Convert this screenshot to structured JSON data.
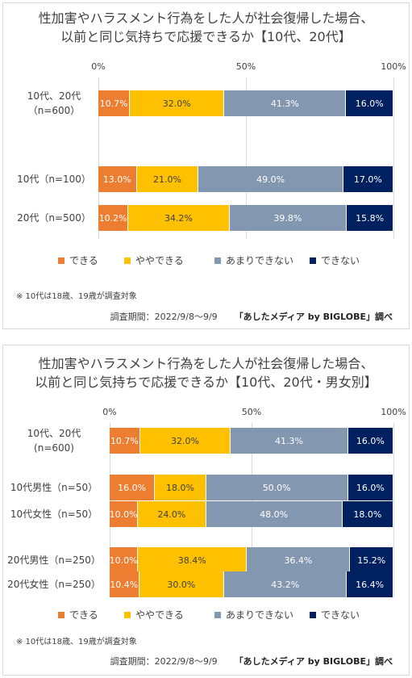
{
  "colors": {
    "dekiru": "#ED7D31",
    "yaya": "#FFC000",
    "amari": "#8497B0",
    "dekinai": "#002060"
  },
  "chart_data": [
    {
      "type": "bar",
      "stacked": true,
      "orientation": "horizontal",
      "title": [
        "性加害やハラスメント行為をした人が社会復帰した場合、",
        "以前と同じ気持ちで応援できるか【10代、20代】"
      ],
      "axis_ticks": [
        "0%",
        "50%",
        "100%"
      ],
      "xlim": [
        0,
        100
      ],
      "legend_position": "bottom",
      "categories": [
        [
          "10代、20代",
          "（n=600）"
        ],
        [
          "10代（n=100）"
        ],
        [
          "20代（n=500）"
        ]
      ],
      "series": [
        {
          "name": "できる",
          "color_key": "dekiru",
          "values": [
            10.7,
            13.0,
            10.2
          ],
          "labels": [
            "10.7%",
            "13.0%",
            "10.2%"
          ],
          "label_color": "#ffffff"
        },
        {
          "name": "ややできる",
          "color_key": "yaya",
          "values": [
            32.0,
            21.0,
            34.2
          ],
          "labels": [
            "32.0%",
            "21.0%",
            "34.2%"
          ],
          "label_color": "#404040"
        },
        {
          "name": "あまりできない",
          "color_key": "amari",
          "values": [
            41.3,
            49.0,
            39.8
          ],
          "labels": [
            "41.3%",
            "49.0%",
            "39.8%"
          ],
          "label_color": "#ffffff"
        },
        {
          "name": "できない",
          "color_key": "dekinai",
          "values": [
            16.0,
            17.0,
            15.8
          ],
          "labels": [
            "16.0%",
            "17.0%",
            "15.8%"
          ],
          "label_color": "#ffffff"
        }
      ],
      "note": "※ 10代は18歳、19歳が調査対象",
      "source_period": "調査期間：2022/9/8～9/9",
      "source_name": "「あしたメディア by BIGLOBE」調べ"
    },
    {
      "type": "bar",
      "stacked": true,
      "orientation": "horizontal",
      "title": [
        "性加害やハラスメント行為をした人が社会復帰した場合、",
        "以前と同じ気持ちで応援できるか【10代、20代・男女別】"
      ],
      "axis_ticks": [
        "0%",
        "50%",
        "100%"
      ],
      "xlim": [
        0,
        100
      ],
      "legend_position": "bottom",
      "categories": [
        [
          "10代、20代",
          "(n=600)"
        ],
        [
          "10代男性（n=50）"
        ],
        [
          "10代女性（n=50）"
        ],
        [
          "20代男性（n=250）"
        ],
        [
          "20代女性（n=250）"
        ]
      ],
      "series": [
        {
          "name": "できる",
          "color_key": "dekiru",
          "values": [
            10.7,
            16.0,
            10.0,
            10.0,
            10.4
          ],
          "labels": [
            "10.7%",
            "16.0%",
            "10.0%",
            "10.0%",
            "10.4%"
          ],
          "label_color": "#ffffff"
        },
        {
          "name": "ややできる",
          "color_key": "yaya",
          "values": [
            32.0,
            18.0,
            24.0,
            38.4,
            30.0
          ],
          "labels": [
            "32.0%",
            "18.0%",
            "24.0%",
            "38.4%",
            "30.0%"
          ],
          "label_color": "#404040"
        },
        {
          "name": "あまりできない",
          "color_key": "amari",
          "values": [
            41.3,
            50.0,
            48.0,
            36.4,
            43.2
          ],
          "labels": [
            "41.3%",
            "50.0%",
            "48.0%",
            "36.4%",
            "43.2%"
          ],
          "label_color": "#ffffff"
        },
        {
          "name": "できない",
          "color_key": "dekinai",
          "values": [
            16.0,
            16.0,
            18.0,
            15.2,
            16.4
          ],
          "labels": [
            "16.0%",
            "16.0%",
            "18.0%",
            "15.2%",
            "16.4%"
          ],
          "label_color": "#ffffff"
        }
      ],
      "note": "※ 10代は18歳、19歳が調査対象",
      "source_period": "調査期間：2022/9/8～9/9",
      "source_name": "「あしたメディア by BIGLOBE」調べ"
    }
  ]
}
